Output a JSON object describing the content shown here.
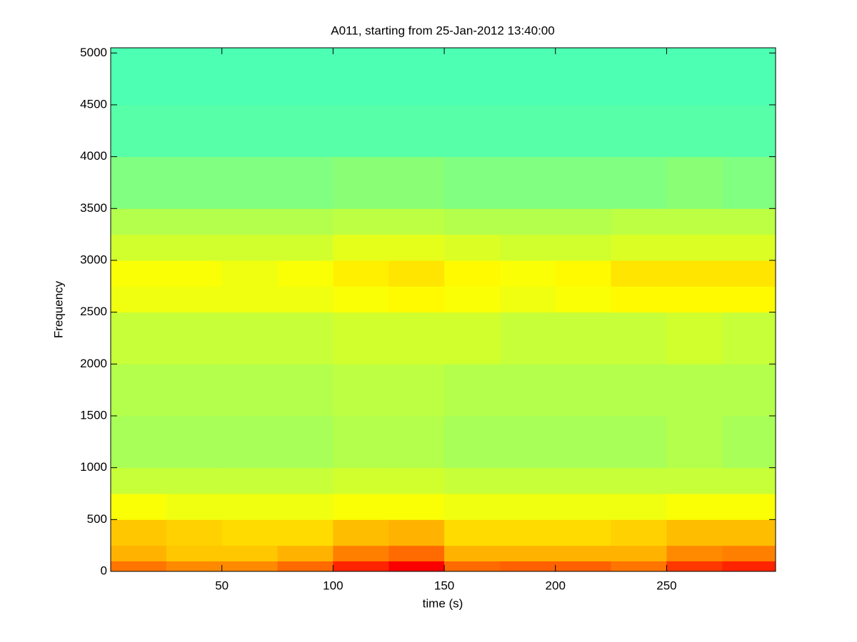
{
  "chart_data": {
    "type": "heatmap",
    "title": "A011, starting from 25-Jan-2012 13:40:00",
    "x_label": "time (s)",
    "y_label": "Frequency",
    "colormap": "jet",
    "zlim": [
      0,
      1
    ],
    "xlim": [
      0,
      299
    ],
    "ylim": [
      0,
      5050
    ],
    "xticks": [
      50,
      100,
      150,
      200,
      250
    ],
    "yticks": [
      0,
      500,
      1000,
      1500,
      2000,
      2500,
      3000,
      3500,
      4000,
      4500,
      5000
    ],
    "x_edges": [
      0,
      25,
      50,
      75,
      100,
      125,
      150,
      175,
      200,
      225,
      250,
      275,
      299
    ],
    "y_edges": [
      0,
      100,
      250,
      500,
      750,
      1000,
      1500,
      2000,
      2500,
      2750,
      3000,
      3250,
      3500,
      4000,
      4500,
      5050
    ],
    "z": [
      [
        0.76,
        0.74,
        0.74,
        0.77,
        0.84,
        0.88,
        0.77,
        0.78,
        0.78,
        0.76,
        0.82,
        0.84
      ],
      [
        0.7,
        0.68,
        0.68,
        0.7,
        0.75,
        0.77,
        0.7,
        0.7,
        0.7,
        0.7,
        0.74,
        0.75
      ],
      [
        0.68,
        0.67,
        0.66,
        0.66,
        0.69,
        0.7,
        0.66,
        0.66,
        0.66,
        0.67,
        0.69,
        0.69
      ],
      [
        0.62,
        0.61,
        0.61,
        0.61,
        0.62,
        0.62,
        0.61,
        0.61,
        0.61,
        0.61,
        0.62,
        0.62
      ],
      [
        0.57,
        0.57,
        0.57,
        0.57,
        0.58,
        0.58,
        0.57,
        0.57,
        0.57,
        0.57,
        0.57,
        0.57
      ],
      [
        0.54,
        0.54,
        0.54,
        0.54,
        0.55,
        0.55,
        0.54,
        0.54,
        0.54,
        0.54,
        0.55,
        0.54
      ],
      [
        0.55,
        0.55,
        0.55,
        0.55,
        0.56,
        0.56,
        0.55,
        0.55,
        0.55,
        0.55,
        0.55,
        0.55
      ],
      [
        0.57,
        0.57,
        0.57,
        0.57,
        0.58,
        0.58,
        0.58,
        0.57,
        0.57,
        0.57,
        0.58,
        0.57
      ],
      [
        0.61,
        0.61,
        0.61,
        0.61,
        0.62,
        0.63,
        0.62,
        0.61,
        0.62,
        0.63,
        0.63,
        0.63
      ],
      [
        0.62,
        0.62,
        0.61,
        0.62,
        0.64,
        0.65,
        0.63,
        0.62,
        0.63,
        0.65,
        0.65,
        0.65
      ],
      [
        0.58,
        0.58,
        0.58,
        0.58,
        0.6,
        0.6,
        0.59,
        0.58,
        0.58,
        0.59,
        0.59,
        0.59
      ],
      [
        0.55,
        0.55,
        0.55,
        0.55,
        0.56,
        0.56,
        0.55,
        0.55,
        0.55,
        0.56,
        0.56,
        0.56
      ],
      [
        0.5,
        0.5,
        0.5,
        0.5,
        0.51,
        0.51,
        0.5,
        0.5,
        0.5,
        0.5,
        0.51,
        0.5
      ],
      [
        0.46,
        0.46,
        0.46,
        0.46,
        0.46,
        0.46,
        0.46,
        0.46,
        0.46,
        0.46,
        0.46,
        0.46
      ],
      [
        0.45,
        0.45,
        0.45,
        0.45,
        0.45,
        0.45,
        0.45,
        0.45,
        0.45,
        0.45,
        0.45,
        0.45
      ]
    ]
  }
}
